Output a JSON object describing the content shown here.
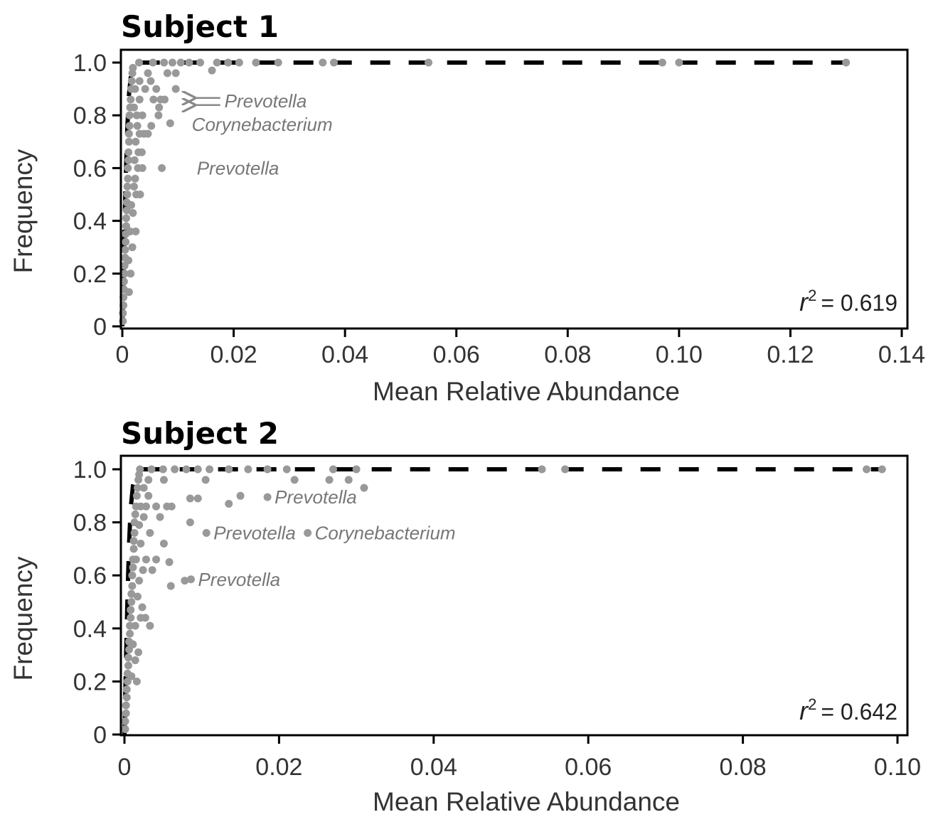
{
  "chart_data": [
    {
      "type": "scatter",
      "title": "Subject 1",
      "xlabel": "Mean Relative Abundance",
      "ylabel": "Frequency",
      "xlim": [
        0,
        0.14
      ],
      "ylim": [
        0,
        1.0
      ],
      "x_ticks": [
        "0",
        "0.02",
        "0.04",
        "0.06",
        "0.08",
        "0.10",
        "0.12",
        "0.14"
      ],
      "y_ticks": [
        "0",
        "0.2",
        "0.4",
        "0.6",
        "0.8",
        "1.0"
      ],
      "r2_label": "r",
      "r2_value": "= 0.619",
      "grid": false,
      "points_color": "#999999",
      "fit_color": "#000000",
      "annotations": [
        {
          "text": "Prevotella",
          "x": 0.0112,
          "y": 0.855,
          "arrow": true
        },
        {
          "text": "Corynebacterium",
          "x": 0.0112,
          "y": 0.765
        },
        {
          "text": "Prevotella",
          "x": 0.0121,
          "y": 0.6
        }
      ],
      "points": [
        [
          0.0001,
          0.02
        ],
        [
          0.0001,
          0.05
        ],
        [
          0.0002,
          0.08
        ],
        [
          0.0002,
          0.11
        ],
        [
          0.0003,
          0.14
        ],
        [
          0.0003,
          0.17
        ],
        [
          0.0004,
          0.2
        ],
        [
          0.0004,
          0.23
        ],
        [
          0.0005,
          0.26
        ],
        [
          0.0005,
          0.29
        ],
        [
          0.0006,
          0.32
        ],
        [
          0.0006,
          0.35
        ],
        [
          0.0007,
          0.38
        ],
        [
          0.0007,
          0.41
        ],
        [
          0.0008,
          0.44
        ],
        [
          0.0008,
          0.47
        ],
        [
          0.0009,
          0.5
        ],
        [
          0.0009,
          0.53
        ],
        [
          0.001,
          0.56
        ],
        [
          0.001,
          0.6
        ],
        [
          0.0011,
          0.63
        ],
        [
          0.0011,
          0.66
        ],
        [
          0.0012,
          0.7
        ],
        [
          0.0012,
          0.73
        ],
        [
          0.0013,
          0.76
        ],
        [
          0.0013,
          0.8
        ],
        [
          0.0014,
          0.83
        ],
        [
          0.0015,
          0.86
        ],
        [
          0.0016,
          0.9
        ],
        [
          0.0017,
          0.93
        ],
        [
          0.0018,
          0.96
        ],
        [
          0.0019,
          0.98
        ],
        [
          0.0012,
          0.13
        ],
        [
          0.0015,
          0.2
        ],
        [
          0.0011,
          0.25
        ],
        [
          0.0018,
          0.3
        ],
        [
          0.0024,
          0.36
        ],
        [
          0.0014,
          0.36
        ],
        [
          0.0019,
          0.43
        ],
        [
          0.0016,
          0.46
        ],
        [
          0.0025,
          0.5
        ],
        [
          0.0032,
          0.5
        ],
        [
          0.0021,
          0.53
        ],
        [
          0.0023,
          0.56
        ],
        [
          0.0028,
          0.6
        ],
        [
          0.0036,
          0.6
        ],
        [
          0.0022,
          0.63
        ],
        [
          0.0029,
          0.66
        ],
        [
          0.0035,
          0.66
        ],
        [
          0.0024,
          0.7
        ],
        [
          0.0031,
          0.73
        ],
        [
          0.0039,
          0.73
        ],
        [
          0.0046,
          0.73
        ],
        [
          0.0027,
          0.76
        ],
        [
          0.0052,
          0.76
        ],
        [
          0.0026,
          0.8
        ],
        [
          0.0036,
          0.8
        ],
        [
          0.0066,
          0.83
        ],
        [
          0.0021,
          0.83
        ],
        [
          0.0031,
          0.86
        ],
        [
          0.0056,
          0.86
        ],
        [
          0.0069,
          0.86
        ],
        [
          0.0076,
          0.86
        ],
        [
          0.0023,
          0.9
        ],
        [
          0.0041,
          0.9
        ],
        [
          0.0051,
          0.93
        ],
        [
          0.0061,
          0.9
        ],
        [
          0.0031,
          0.93
        ],
        [
          0.0046,
          0.96
        ],
        [
          0.0081,
          0.96
        ],
        [
          0.0096,
          0.96
        ],
        [
          0.0161,
          0.97
        ],
        [
          0.0071,
          0.6
        ],
        [
          0.0065,
          0.8
        ],
        [
          0.0086,
          0.77
        ],
        [
          0.0096,
          0.9
        ],
        [
          0.003,
          1.0
        ],
        [
          0.0055,
          1.0
        ],
        [
          0.0075,
          1.0
        ],
        [
          0.009,
          1.0
        ],
        [
          0.0105,
          1.0
        ],
        [
          0.012,
          1.0
        ],
        [
          0.014,
          1.0
        ],
        [
          0.017,
          1.0
        ],
        [
          0.019,
          1.0
        ],
        [
          0.021,
          1.0
        ],
        [
          0.024,
          1.0
        ],
        [
          0.028,
          1.0
        ],
        [
          0.036,
          1.0
        ],
        [
          0.038,
          1.0
        ],
        [
          0.055,
          1.0
        ],
        [
          0.097,
          1.0
        ],
        [
          0.1,
          1.0
        ],
        [
          0.13,
          1.0
        ]
      ],
      "fit_line": [
        [
          0.0,
          0.0
        ],
        [
          0.0003,
          0.3
        ],
        [
          0.0006,
          0.55
        ],
        [
          0.0009,
          0.75
        ],
        [
          0.0012,
          0.88
        ],
        [
          0.0016,
          0.96
        ],
        [
          0.0022,
          0.995
        ],
        [
          0.003,
          1.0
        ],
        [
          0.13,
          1.0
        ]
      ]
    },
    {
      "type": "scatter",
      "title": "Subject 2",
      "xlabel": "Mean Relative Abundance",
      "ylabel": "Frequency",
      "xlim": [
        0,
        0.1
      ],
      "ylim": [
        0,
        1.0
      ],
      "x_ticks": [
        "0",
        "0.02",
        "0.04",
        "0.06",
        "0.08",
        "0.10"
      ],
      "y_ticks": [
        "0",
        "0.2",
        "0.4",
        "0.6",
        "0.8",
        "1.0"
      ],
      "r2_label": "r",
      "r2_value": "= 0.642",
      "grid": false,
      "points_color": "#999999",
      "fit_color": "#000000",
      "annotations": [
        {
          "text": "Prevotella",
          "x": 0.0185,
          "y": 0.895
        },
        {
          "text": "Prevotella",
          "x": 0.0106,
          "y": 0.76
        },
        {
          "text": "Corynebacterium",
          "x": 0.0237,
          "y": 0.76
        },
        {
          "text": "Prevotella",
          "x": 0.0086,
          "y": 0.585
        }
      ],
      "points": [
        [
          0.0001,
          0.02
        ],
        [
          0.0001,
          0.05
        ],
        [
          0.0002,
          0.08
        ],
        [
          0.0002,
          0.11
        ],
        [
          0.0003,
          0.14
        ],
        [
          0.0003,
          0.17
        ],
        [
          0.0004,
          0.2
        ],
        [
          0.0004,
          0.23
        ],
        [
          0.0005,
          0.26
        ],
        [
          0.0005,
          0.29
        ],
        [
          0.0006,
          0.32
        ],
        [
          0.0006,
          0.35
        ],
        [
          0.0007,
          0.38
        ],
        [
          0.0007,
          0.41
        ],
        [
          0.0008,
          0.44
        ],
        [
          0.0008,
          0.47
        ],
        [
          0.0009,
          0.5
        ],
        [
          0.0009,
          0.53
        ],
        [
          0.001,
          0.56
        ],
        [
          0.001,
          0.6
        ],
        [
          0.0011,
          0.63
        ],
        [
          0.0011,
          0.66
        ],
        [
          0.0012,
          0.7
        ],
        [
          0.0012,
          0.73
        ],
        [
          0.0013,
          0.76
        ],
        [
          0.0013,
          0.8
        ],
        [
          0.0014,
          0.83
        ],
        [
          0.0015,
          0.86
        ],
        [
          0.0016,
          0.9
        ],
        [
          0.0017,
          0.93
        ],
        [
          0.0018,
          0.96
        ],
        [
          0.0019,
          0.98
        ],
        [
          0.0009,
          0.22
        ],
        [
          0.0014,
          0.28
        ],
        [
          0.0016,
          0.2
        ],
        [
          0.0011,
          0.34
        ],
        [
          0.0018,
          0.31
        ],
        [
          0.0014,
          0.41
        ],
        [
          0.0021,
          0.44
        ],
        [
          0.0027,
          0.44
        ],
        [
          0.0033,
          0.41
        ],
        [
          0.0023,
          0.48
        ],
        [
          0.0017,
          0.52
        ],
        [
          0.0019,
          0.58
        ],
        [
          0.0024,
          0.62
        ],
        [
          0.0036,
          0.62
        ],
        [
          0.0015,
          0.66
        ],
        [
          0.0028,
          0.66
        ],
        [
          0.0041,
          0.66
        ],
        [
          0.0021,
          0.72
        ],
        [
          0.0019,
          0.79
        ],
        [
          0.0033,
          0.76
        ],
        [
          0.0051,
          0.72
        ],
        [
          0.0025,
          0.82
        ],
        [
          0.0046,
          0.82
        ],
        [
          0.0021,
          0.86
        ],
        [
          0.0028,
          0.86
        ],
        [
          0.0041,
          0.86
        ],
        [
          0.0055,
          0.86
        ],
        [
          0.0061,
          0.86
        ],
        [
          0.0031,
          0.9
        ],
        [
          0.0025,
          0.93
        ],
        [
          0.0031,
          0.96
        ],
        [
          0.0051,
          0.96
        ],
        [
          0.0058,
          0.65
        ],
        [
          0.006,
          0.56
        ],
        [
          0.0078,
          0.58
        ],
        [
          0.0086,
          0.585
        ],
        [
          0.0085,
          0.89
        ],
        [
          0.0095,
          0.89
        ],
        [
          0.0106,
          0.76
        ],
        [
          0.0085,
          0.8
        ],
        [
          0.0135,
          0.87
        ],
        [
          0.015,
          0.9
        ],
        [
          0.0185,
          0.895
        ],
        [
          0.0237,
          0.76
        ],
        [
          0.029,
          0.96
        ],
        [
          0.031,
          0.93
        ],
        [
          0.0265,
          0.96
        ],
        [
          0.022,
          0.96
        ],
        [
          0.0105,
          0.96
        ],
        [
          0.002,
          1.0
        ],
        [
          0.0035,
          1.0
        ],
        [
          0.005,
          1.0
        ],
        [
          0.0065,
          1.0
        ],
        [
          0.008,
          1.0
        ],
        [
          0.0095,
          1.0
        ],
        [
          0.011,
          1.0
        ],
        [
          0.0135,
          1.0
        ],
        [
          0.016,
          1.0
        ],
        [
          0.0185,
          1.0
        ],
        [
          0.021,
          1.0
        ],
        [
          0.027,
          1.0
        ],
        [
          0.03,
          1.0
        ],
        [
          0.054,
          1.0
        ],
        [
          0.057,
          1.0
        ],
        [
          0.096,
          1.0
        ],
        [
          0.098,
          1.0
        ]
      ],
      "fit_line": [
        [
          0.0,
          0.0
        ],
        [
          0.0002,
          0.28
        ],
        [
          0.0004,
          0.52
        ],
        [
          0.0006,
          0.72
        ],
        [
          0.0008,
          0.85
        ],
        [
          0.0011,
          0.94
        ],
        [
          0.0015,
          0.985
        ],
        [
          0.002,
          1.0
        ],
        [
          0.098,
          1.0
        ]
      ]
    }
  ]
}
